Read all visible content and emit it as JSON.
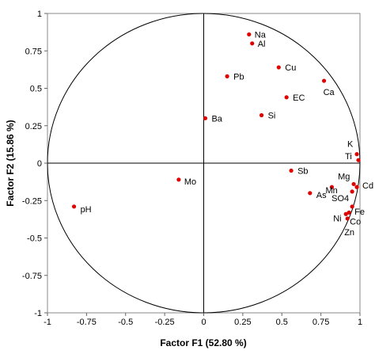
{
  "chart_data": {
    "type": "scatter",
    "title": "",
    "xlabel": "Factor F1 (52.80 %)",
    "ylabel": "Factor F2 (15.86 %)",
    "xlim": [
      -1,
      1
    ],
    "ylim": [
      -1,
      1
    ],
    "x_ticks": [
      "-1",
      "-0.75",
      "-0.5",
      "-0.25",
      "0",
      "0.25",
      "0.5",
      "0.75",
      "1"
    ],
    "y_ticks": [
      "1",
      "0.75",
      "0.5",
      "0.25",
      "0",
      "-0.25",
      "-0.5",
      "-0.75",
      "-1"
    ],
    "correlation_circle": true,
    "grid": false,
    "point_color": "#e00000",
    "points": [
      {
        "label": "Na",
        "x": 0.29,
        "y": 0.86
      },
      {
        "label": "Al",
        "x": 0.31,
        "y": 0.8
      },
      {
        "label": "Cu",
        "x": 0.48,
        "y": 0.64
      },
      {
        "label": "Pb",
        "x": 0.15,
        "y": 0.58
      },
      {
        "label": "Ca",
        "x": 0.77,
        "y": 0.55
      },
      {
        "label": "EC",
        "x": 0.53,
        "y": 0.44
      },
      {
        "label": "Ba",
        "x": 0.01,
        "y": 0.3
      },
      {
        "label": "Si",
        "x": 0.37,
        "y": 0.32
      },
      {
        "label": "K",
        "x": 0.98,
        "y": 0.06
      },
      {
        "label": "Ti",
        "x": 0.99,
        "y": 0.02
      },
      {
        "label": "Sb",
        "x": 0.56,
        "y": -0.05
      },
      {
        "label": "Mg",
        "x": 0.96,
        "y": -0.14
      },
      {
        "label": "Cd",
        "x": 0.98,
        "y": -0.16
      },
      {
        "label": "Mn",
        "x": 0.82,
        "y": -0.16
      },
      {
        "label": "As",
        "x": 0.68,
        "y": -0.2
      },
      {
        "label": "SO4",
        "x": 0.95,
        "y": -0.19
      },
      {
        "label": "Fe",
        "x": 0.95,
        "y": -0.29
      },
      {
        "label": "Co",
        "x": 0.93,
        "y": -0.33
      },
      {
        "label": "Ni",
        "x": 0.91,
        "y": -0.34
      },
      {
        "label": "Zn",
        "x": 0.92,
        "y": -0.37
      },
      {
        "label": "Mo",
        "x": -0.16,
        "y": -0.11
      },
      {
        "label": "pH",
        "x": -0.83,
        "y": -0.29
      }
    ]
  }
}
